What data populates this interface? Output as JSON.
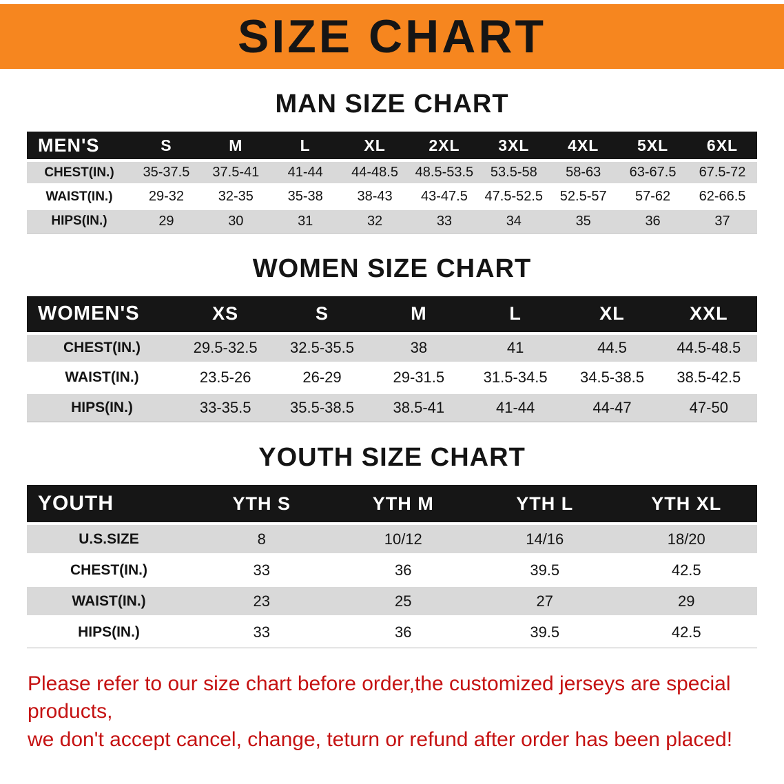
{
  "colors": {
    "banner_orange": "#F6861F",
    "header_black": "#161616",
    "row_gray": "#D9D9D9",
    "disclaimer_red": "#C51212"
  },
  "banner": {
    "title": "SIZE CHART"
  },
  "sections": [
    {
      "heading": "MAN SIZE CHART",
      "table": {
        "header": [
          "MEN'S",
          "S",
          "M",
          "L",
          "XL",
          "2XL",
          "3XL",
          "4XL",
          "5XL",
          "6XL"
        ],
        "rows": [
          [
            "CHEST(IN.)",
            "35-37.5",
            "37.5-41",
            "41-44",
            "44-48.5",
            "48.5-53.5",
            "53.5-58",
            "58-63",
            "63-67.5",
            "67.5-72"
          ],
          [
            "WAIST(IN.)",
            "29-32",
            "32-35",
            "35-38",
            "38-43",
            "43-47.5",
            "47.5-52.5",
            "52.5-57",
            "57-62",
            "62-66.5"
          ],
          [
            "HIPS(IN.)",
            "29",
            "30",
            "31",
            "32",
            "33",
            "34",
            "35",
            "36",
            "37"
          ]
        ]
      }
    },
    {
      "heading": "WOMEN SIZE CHART",
      "table": {
        "header": [
          "WOMEN'S",
          "XS",
          "S",
          "M",
          "L",
          "XL",
          "XXL"
        ],
        "rows": [
          [
            "CHEST(IN.)",
            "29.5-32.5",
            "32.5-35.5",
            "38",
            "41",
            "44.5",
            "44.5-48.5"
          ],
          [
            "WAIST(IN.)",
            "23.5-26",
            "26-29",
            "29-31.5",
            "31.5-34.5",
            "34.5-38.5",
            "38.5-42.5"
          ],
          [
            "HIPS(IN.)",
            "33-35.5",
            "35.5-38.5",
            "38.5-41",
            "41-44",
            "44-47",
            "47-50"
          ]
        ]
      }
    },
    {
      "heading": "YOUTH SIZE CHART",
      "table": {
        "header": [
          "YOUTH",
          "YTH S",
          "YTH M",
          "YTH L",
          "YTH XL"
        ],
        "rows": [
          [
            "U.S.SIZE",
            "8",
            "10/12",
            "14/16",
            "18/20"
          ],
          [
            "CHEST(IN.)",
            "33",
            "36",
            "39.5",
            "42.5"
          ],
          [
            "WAIST(IN.)",
            "23",
            "25",
            "27",
            "29"
          ],
          [
            "HIPS(IN.)",
            "33",
            "36",
            "39.5",
            "42.5"
          ]
        ]
      }
    }
  ],
  "disclaimer": {
    "line1": "Please refer to our size chart before order,the customized jerseys are special products,",
    "line2": "we don't accept cancel, change, teturn or refund after order has been placed!"
  }
}
